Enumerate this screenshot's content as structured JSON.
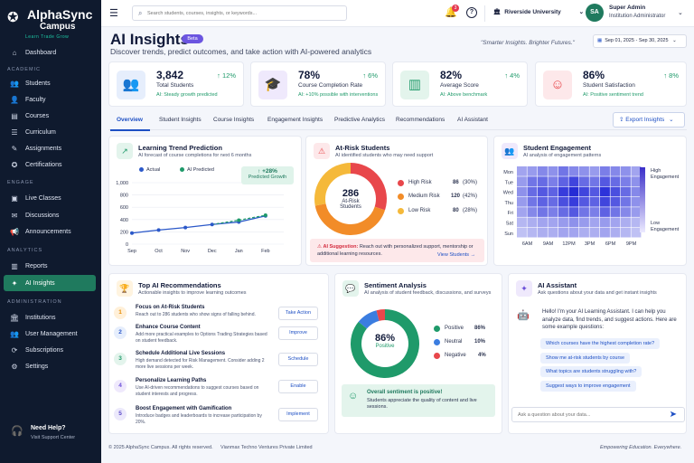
{
  "brand": {
    "name": "AlphaSync",
    "subtitle": "Campus",
    "tagline": "Learn  Trade  Grow"
  },
  "sidebar": {
    "dashboard": "Dashboard",
    "sections": {
      "academic": "ACADEMIC",
      "engage": "ENGAGE",
      "analytics": "ANALYTICS",
      "administration": "ADMINISTRATION"
    },
    "items": [
      {
        "label": "Students",
        "icon": "students-icon"
      },
      {
        "label": "Faculty",
        "icon": "faculty-icon"
      },
      {
        "label": "Courses",
        "icon": "courses-icon"
      },
      {
        "label": "Curriculum",
        "icon": "curriculum-icon"
      },
      {
        "label": "Assignments",
        "icon": "assignments-icon"
      },
      {
        "label": "Certifications",
        "icon": "certifications-icon"
      },
      {
        "label": "Live Classes",
        "icon": "live-classes-icon"
      },
      {
        "label": "Discussions",
        "icon": "discussions-icon"
      },
      {
        "label": "Announcements",
        "icon": "announcements-icon"
      },
      {
        "label": "Reports",
        "icon": "reports-icon"
      },
      {
        "label": "AI Insights",
        "icon": "ai-insights-icon",
        "active": true
      },
      {
        "label": "Institutions",
        "icon": "institutions-icon"
      },
      {
        "label": "User Management",
        "icon": "user-management-icon"
      },
      {
        "label": "Subscriptions",
        "icon": "subscriptions-icon"
      },
      {
        "label": "Settings",
        "icon": "settings-icon"
      }
    ],
    "help_title": "Need Help?",
    "help_link": "Visit Support Center"
  },
  "topbar": {
    "search_placeholder": "Search students, courses, insights, or keywords...",
    "notification_count": "3",
    "university": "Riverside University",
    "user_initials": "SA",
    "user_name": "Super Admin",
    "user_role": "Institution Administrator"
  },
  "header": {
    "title": "AI Insights",
    "badge": "Beta",
    "subtitle": "Discover trends, predict outcomes, and take action with AI-powered analytics",
    "slogan": "\"Smarter Insights. Brighter Futures.\"",
    "date_range": "Sep 01, 2025 - Sep 30, 2025"
  },
  "stats": [
    {
      "value": "3,842",
      "label": "Total Students",
      "note": "AI:  Steady growth predicted",
      "delta": "12%"
    },
    {
      "value": "78%",
      "label": "Course Completion Rate",
      "note": "AI: +10% possible with interventions",
      "delta": "6%"
    },
    {
      "value": "82%",
      "label": "Average Score",
      "note": "AI: Above benchmark",
      "delta": "4%"
    },
    {
      "value": "86%",
      "label": "Student Satisfaction",
      "note": "AI: Positive sentiment trend",
      "delta": "8%"
    }
  ],
  "tabs": [
    "Overview",
    "Student Insights",
    "Course Insights",
    "Engagement Insights",
    "Predictive Analytics",
    "Recommendations",
    "AI Assistant"
  ],
  "export_label": "Export Insights",
  "learning_trend": {
    "title": "Learning Trend Prediction",
    "subtitle": "AI forecast of course completions for next 6 months",
    "legend_actual": "Actual",
    "legend_predicted": "AI Predicted",
    "growth_value": "+28%",
    "growth_label": "Predicted Growth"
  },
  "at_risk": {
    "title": "At-Risk Students",
    "subtitle": "AI identified students who may need support",
    "center_value": "286",
    "center_label_1": "At-Risk",
    "center_label_2": "Students",
    "rows": [
      {
        "name": "High Risk",
        "count": "86",
        "pct": "(30%)",
        "color": "#e8474b",
        "value": 30
      },
      {
        "name": "Medium Risk",
        "count": "120",
        "pct": "(42%)",
        "color": "#f28c28",
        "value": 42
      },
      {
        "name": "Low Risk",
        "count": "80",
        "pct": "(28%)",
        "color": "#f5b93a",
        "value": 28
      }
    ],
    "suggestion_label": "AI Suggestion:",
    "suggestion_text": "Reach out with personalized support, mentorship or additional learning resources.",
    "view_link": "View Students →"
  },
  "engagement": {
    "title": "Student Engagement",
    "subtitle": "AI analysis of engagement patterns",
    "scale_high": "High Engagement",
    "scale_low": "Low Engagement"
  },
  "recommendations": {
    "title": "Top AI Recommendations",
    "subtitle": "Actionable insights to improve learning outcomes",
    "items": [
      {
        "n": "1",
        "title": "Focus on At-Risk Students",
        "desc": "Reach out to 286 students who show signs of falling behind.",
        "action": "Take Action"
      },
      {
        "n": "2",
        "title": "Enhance Course Content",
        "desc": "Add more practical examples to Options Trading Strategies based on student feedback.",
        "action": "Improve"
      },
      {
        "n": "3",
        "title": "Schedule Additional Live Sessions",
        "desc": "High demand detected for Risk Management. Consider adding 2 more live sessions per week.",
        "action": "Schedule"
      },
      {
        "n": "4",
        "title": "Personalize Learning Paths",
        "desc": "Use AI-driven recommendations to suggest courses based on student interests and progress.",
        "action": "Enable"
      },
      {
        "n": "5",
        "title": "Boost Engagement with Gamification",
        "desc": "Introduce badges and leaderboards to increase participation by 20%.",
        "action": "Implement"
      }
    ]
  },
  "sentiment": {
    "title": "Sentiment Analysis",
    "subtitle": "AI analysis of student feedback, discussions, and surveys",
    "center_value": "86%",
    "center_label": "Positive",
    "rows": [
      {
        "name": "Positive",
        "pct": "86%",
        "color": "#1f9a6a",
        "value": 86
      },
      {
        "name": "Neutral",
        "pct": "10%",
        "color": "#3b7de0",
        "value": 10
      },
      {
        "name": "Negative",
        "pct": "4%",
        "color": "#e8474b",
        "value": 4
      }
    ],
    "box_title": "Overall sentiment is positive!",
    "box_text": "Students appreciate the quality of content and live sessions."
  },
  "assistant": {
    "title": "AI Assistant",
    "subtitle": "Ask questions about your data and get instant insights",
    "message": "Hello! I'm your AI Learning Assistant. I can help you analyze data, find trends, and suggest actions. Here are some example questions:",
    "suggestions": [
      "Which courses have the highest completion rate?",
      "Show me at-risk students by course",
      "What topics are students struggling with?",
      "Suggest ways to improve engagement"
    ],
    "input_placeholder": "Ask a question about your data..."
  },
  "footer": {
    "copyright": "© 2025 AlphaSync Campus. All rights reserved.",
    "company": "Vianmax Techno Ventures Private Limited",
    "motto": "Empowering Education. Everywhere."
  },
  "chart_data": [
    {
      "type": "line",
      "x": [
        "Sep",
        "Oct",
        "Nov",
        "Dec",
        "Jan",
        "Feb"
      ],
      "ylim": [
        0,
        1000
      ],
      "yticks": [
        0,
        200,
        400,
        600,
        800,
        1000
      ],
      "series": [
        {
          "name": "Actual",
          "values": [
            180,
            230,
            270,
            320,
            null,
            null
          ],
          "x_end_fraction": null
        },
        {
          "name": "AI Predicted",
          "values": [
            null,
            null,
            null,
            320,
            390,
            470
          ]
        }
      ],
      "actual_extended": [
        180,
        230,
        270,
        320,
        360,
        460
      ]
    },
    {
      "type": "heatmap",
      "rows": [
        "Mon",
        "Tue",
        "Wed",
        "Thu",
        "Fri",
        "Sat",
        "Sun"
      ],
      "cols": [
        "6AM",
        "9AM",
        "12PM",
        "3PM",
        "6PM",
        "9PM"
      ],
      "values": [
        [
          0.3,
          0.35,
          0.45,
          0.4,
          0.55,
          0.45,
          0.4,
          0.35,
          0.5,
          0.45,
          0.4,
          0.3
        ],
        [
          0.35,
          0.55,
          0.6,
          0.5,
          0.65,
          0.8,
          0.6,
          0.55,
          0.7,
          0.6,
          0.5,
          0.4
        ],
        [
          0.4,
          0.6,
          0.7,
          0.65,
          0.85,
          0.95,
          0.8,
          0.7,
          0.9,
          0.75,
          0.6,
          0.45
        ],
        [
          0.35,
          0.55,
          0.65,
          0.6,
          0.75,
          0.85,
          0.7,
          0.65,
          0.8,
          0.7,
          0.55,
          0.4
        ],
        [
          0.3,
          0.45,
          0.55,
          0.5,
          0.6,
          0.7,
          0.55,
          0.5,
          0.65,
          0.55,
          0.45,
          0.35
        ],
        [
          0.2,
          0.25,
          0.3,
          0.3,
          0.35,
          0.4,
          0.35,
          0.3,
          0.35,
          0.3,
          0.25,
          0.2
        ],
        [
          0.15,
          0.2,
          0.25,
          0.25,
          0.3,
          0.3,
          0.25,
          0.25,
          0.3,
          0.25,
          0.2,
          0.15
        ]
      ]
    },
    {
      "type": "pie",
      "categories": [
        "High Risk",
        "Medium Risk",
        "Low Risk"
      ],
      "values": [
        30,
        42,
        28
      ]
    },
    {
      "type": "pie",
      "categories": [
        "Positive",
        "Neutral",
        "Negative"
      ],
      "values": [
        86,
        10,
        4
      ]
    }
  ]
}
